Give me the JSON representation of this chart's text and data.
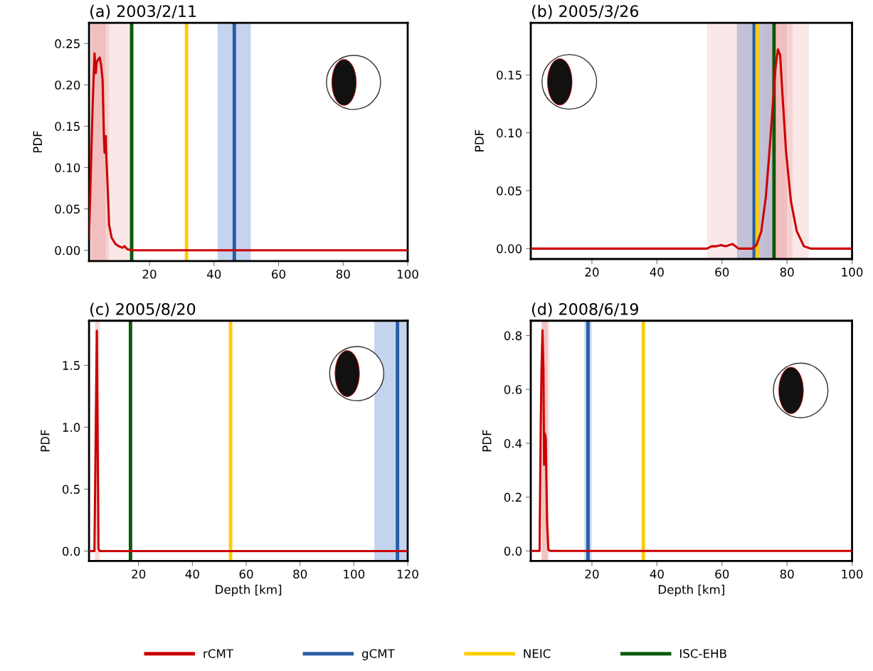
{
  "chart_data": [
    {
      "type": "line",
      "title": "(a) 2003/2/11",
      "ylabel": "PDF",
      "series": [
        {
          "name": "rCMT",
          "color": "#cc0000",
          "x": [
            1.3,
            2.4,
            3.0,
            3.4,
            3.7,
            4.6,
            5.0,
            5.5,
            5.9,
            6.1,
            6.5,
            6.6,
            7.2,
            7.5,
            8.3,
            9.4,
            10.5,
            11.6,
            12.3,
            13.2,
            14.9,
            100
          ],
          "values": [
            0.015,
            0.173,
            0.238,
            0.214,
            0.228,
            0.233,
            0.225,
            0.206,
            0.138,
            0.118,
            0.138,
            0.118,
            0.064,
            0.031,
            0.015,
            0.008,
            0.005,
            0.003,
            0.005,
            0.001,
            0.0,
            0.0
          ]
        }
      ],
      "ref_lines": [
        {
          "axis": "x",
          "value": 46.3,
          "label": "gCMT",
          "color": "#2a5da3"
        },
        {
          "axis": "x",
          "value": 31.5,
          "label": "NEIC",
          "color": "#ffcc00"
        },
        {
          "axis": "x",
          "value": 14.5,
          "label": "ISC-EHB",
          "color": "#0a5a0a"
        }
      ],
      "bands": [
        {
          "axis": "x",
          "from": 1.3,
          "to": 14.0,
          "color": "#f8e0e0"
        },
        {
          "axis": "x",
          "from": 1.8,
          "to": 7.5,
          "color": "#f4cccc"
        },
        {
          "axis": "x",
          "from": 2.0,
          "to": 6.4,
          "color": "#efb8b8"
        },
        {
          "axis": "x",
          "from": 41.1,
          "to": 51.4,
          "color": "#b0c6e8"
        }
      ],
      "xlim": [
        1.3,
        100
      ],
      "xticks": [
        20,
        40,
        60,
        80,
        100
      ],
      "ylim": [
        -0.013,
        0.275
      ],
      "yticks": [
        {
          "value": 0,
          "label": "0.00"
        },
        {
          "value": 0.05,
          "label": "0.05"
        },
        {
          "value": 0.1,
          "label": "0.10"
        },
        {
          "value": 0.15,
          "label": "0.15"
        },
        {
          "value": 0.2,
          "label": "0.20"
        },
        {
          "value": 0.25,
          "label": "0.25"
        }
      ],
      "grid": false,
      "legend": "bottom"
    },
    {
      "type": "line",
      "title": "(b) 2005/3/26",
      "ylabel": "PDF",
      "series": [
        {
          "color": "#cc0000",
          "x": [
            1.2,
            55.4,
            56.8,
            58.3,
            59.7,
            61.2,
            63.2,
            65.1,
            69.2,
            70.6,
            72.1,
            73.5,
            74.6,
            75.6,
            76.5,
            77.2,
            77.9,
            78.6,
            79.7,
            81.2,
            83.0,
            85.2,
            87.3,
            100
          ],
          "values": [
            0.0,
            0.0,
            0.002,
            0.002,
            0.003,
            0.002,
            0.004,
            0.0,
            0.0,
            0.003,
            0.015,
            0.045,
            0.084,
            0.123,
            0.157,
            0.172,
            0.167,
            0.133,
            0.084,
            0.041,
            0.015,
            0.002,
            0.0,
            0.0
          ]
        }
      ],
      "ref_lines": [
        {
          "axis": "x",
          "value": 69.9,
          "color": "#2a5da3"
        },
        {
          "axis": "x",
          "value": 70.8,
          "color": "#ffcc00"
        },
        {
          "axis": "x",
          "value": 76.0,
          "color": "#0a5a0a"
        }
      ],
      "bands": [
        {
          "axis": "x",
          "from": 55.4,
          "to": 86.8,
          "color": "#f8e0e0"
        },
        {
          "axis": "x",
          "from": 73.2,
          "to": 81.7,
          "color": "#f4cccc"
        },
        {
          "axis": "x",
          "from": 75.4,
          "to": 80.0,
          "color": "#efb8b8"
        },
        {
          "axis": "x",
          "from": 64.6,
          "to": 75.4,
          "color": "#b0b4d0"
        }
      ],
      "xlim": [
        1.2,
        100
      ],
      "xticks": [
        20,
        40,
        60,
        80,
        100
      ],
      "ylim": [
        -0.009,
        0.195
      ],
      "yticks": [
        {
          "value": 0,
          "label": "0.00"
        },
        {
          "value": 0.05,
          "label": "0.05"
        },
        {
          "value": 0.1,
          "label": "0.10"
        },
        {
          "value": 0.15,
          "label": "0.15"
        }
      ],
      "grid": false
    },
    {
      "type": "line",
      "title": "(c) 2005/8/20",
      "ylabel": "PDF",
      "xlabel": "Depth [km]",
      "series": [
        {
          "color": "#cc0000",
          "x": [
            1.6,
            3.6,
            4.5,
            5.1,
            5.5,
            120
          ],
          "values": [
            0.0,
            0.0,
            1.78,
            0.02,
            0.0,
            0.0
          ]
        }
      ],
      "ref_lines": [
        {
          "axis": "x",
          "value": 116.2,
          "color": "#2a5da3"
        },
        {
          "axis": "x",
          "value": 54.2,
          "color": "#ffcc00"
        },
        {
          "axis": "x",
          "value": 17.0,
          "color": "#0a5a0a"
        }
      ],
      "bands": [
        {
          "axis": "x",
          "from": 3.8,
          "to": 5.5,
          "color": "#f4cccc"
        },
        {
          "axis": "x",
          "from": 107.6,
          "to": 120,
          "color": "#b0c6e8"
        }
      ],
      "xlim": [
        1.6,
        120
      ],
      "xticks": [
        20,
        40,
        60,
        80,
        100,
        120
      ],
      "ylim": [
        -0.08,
        1.86
      ],
      "yticks": [
        {
          "value": 0,
          "label": "0.0"
        },
        {
          "value": 0.5,
          "label": "0.5"
        },
        {
          "value": 1.0,
          "label": "1.0"
        },
        {
          "value": 1.5,
          "label": "1.5"
        }
      ],
      "grid": false
    },
    {
      "type": "line",
      "title": "(d) 2008/6/19",
      "ylabel": "PDF",
      "xlabel": "Depth [km]",
      "series": [
        {
          "color": "#cc0000",
          "x": [
            1.2,
            3.9,
            4.25,
            4.5,
            4.8,
            5.1,
            5.3,
            5.5,
            5.8,
            6.2,
            6.6,
            7.2,
            100
          ],
          "values": [
            0.0,
            0.0,
            0.455,
            0.675,
            0.819,
            0.67,
            0.32,
            0.437,
            0.42,
            0.11,
            0.005,
            0.0,
            0.0
          ]
        }
      ],
      "ref_lines": [
        {
          "axis": "x",
          "value": 18.8,
          "color": "#2a5da3"
        },
        {
          "axis": "x",
          "value": 35.8,
          "color": "#ffcc00"
        }
      ],
      "bands": [
        {
          "axis": "x",
          "from": 4.4,
          "to": 7.0,
          "color": "#f8e0e0"
        },
        {
          "axis": "x",
          "from": 4.6,
          "to": 6.4,
          "color": "#efb8b8"
        },
        {
          "axis": "x",
          "from": 17.7,
          "to": 19.9,
          "color": "#b0c6e8"
        }
      ],
      "xlim": [
        1.2,
        100
      ],
      "xticks": [
        20,
        40,
        60,
        80,
        100
      ],
      "ylim": [
        -0.037,
        0.855
      ],
      "yticks": [
        {
          "value": 0,
          "label": "0.0"
        },
        {
          "value": 0.2,
          "label": "0.2"
        },
        {
          "value": 0.4,
          "label": "0.4"
        },
        {
          "value": 0.6,
          "label": "0.6"
        },
        {
          "value": 0.8,
          "label": "0.8"
        }
      ],
      "grid": false
    }
  ]
}
